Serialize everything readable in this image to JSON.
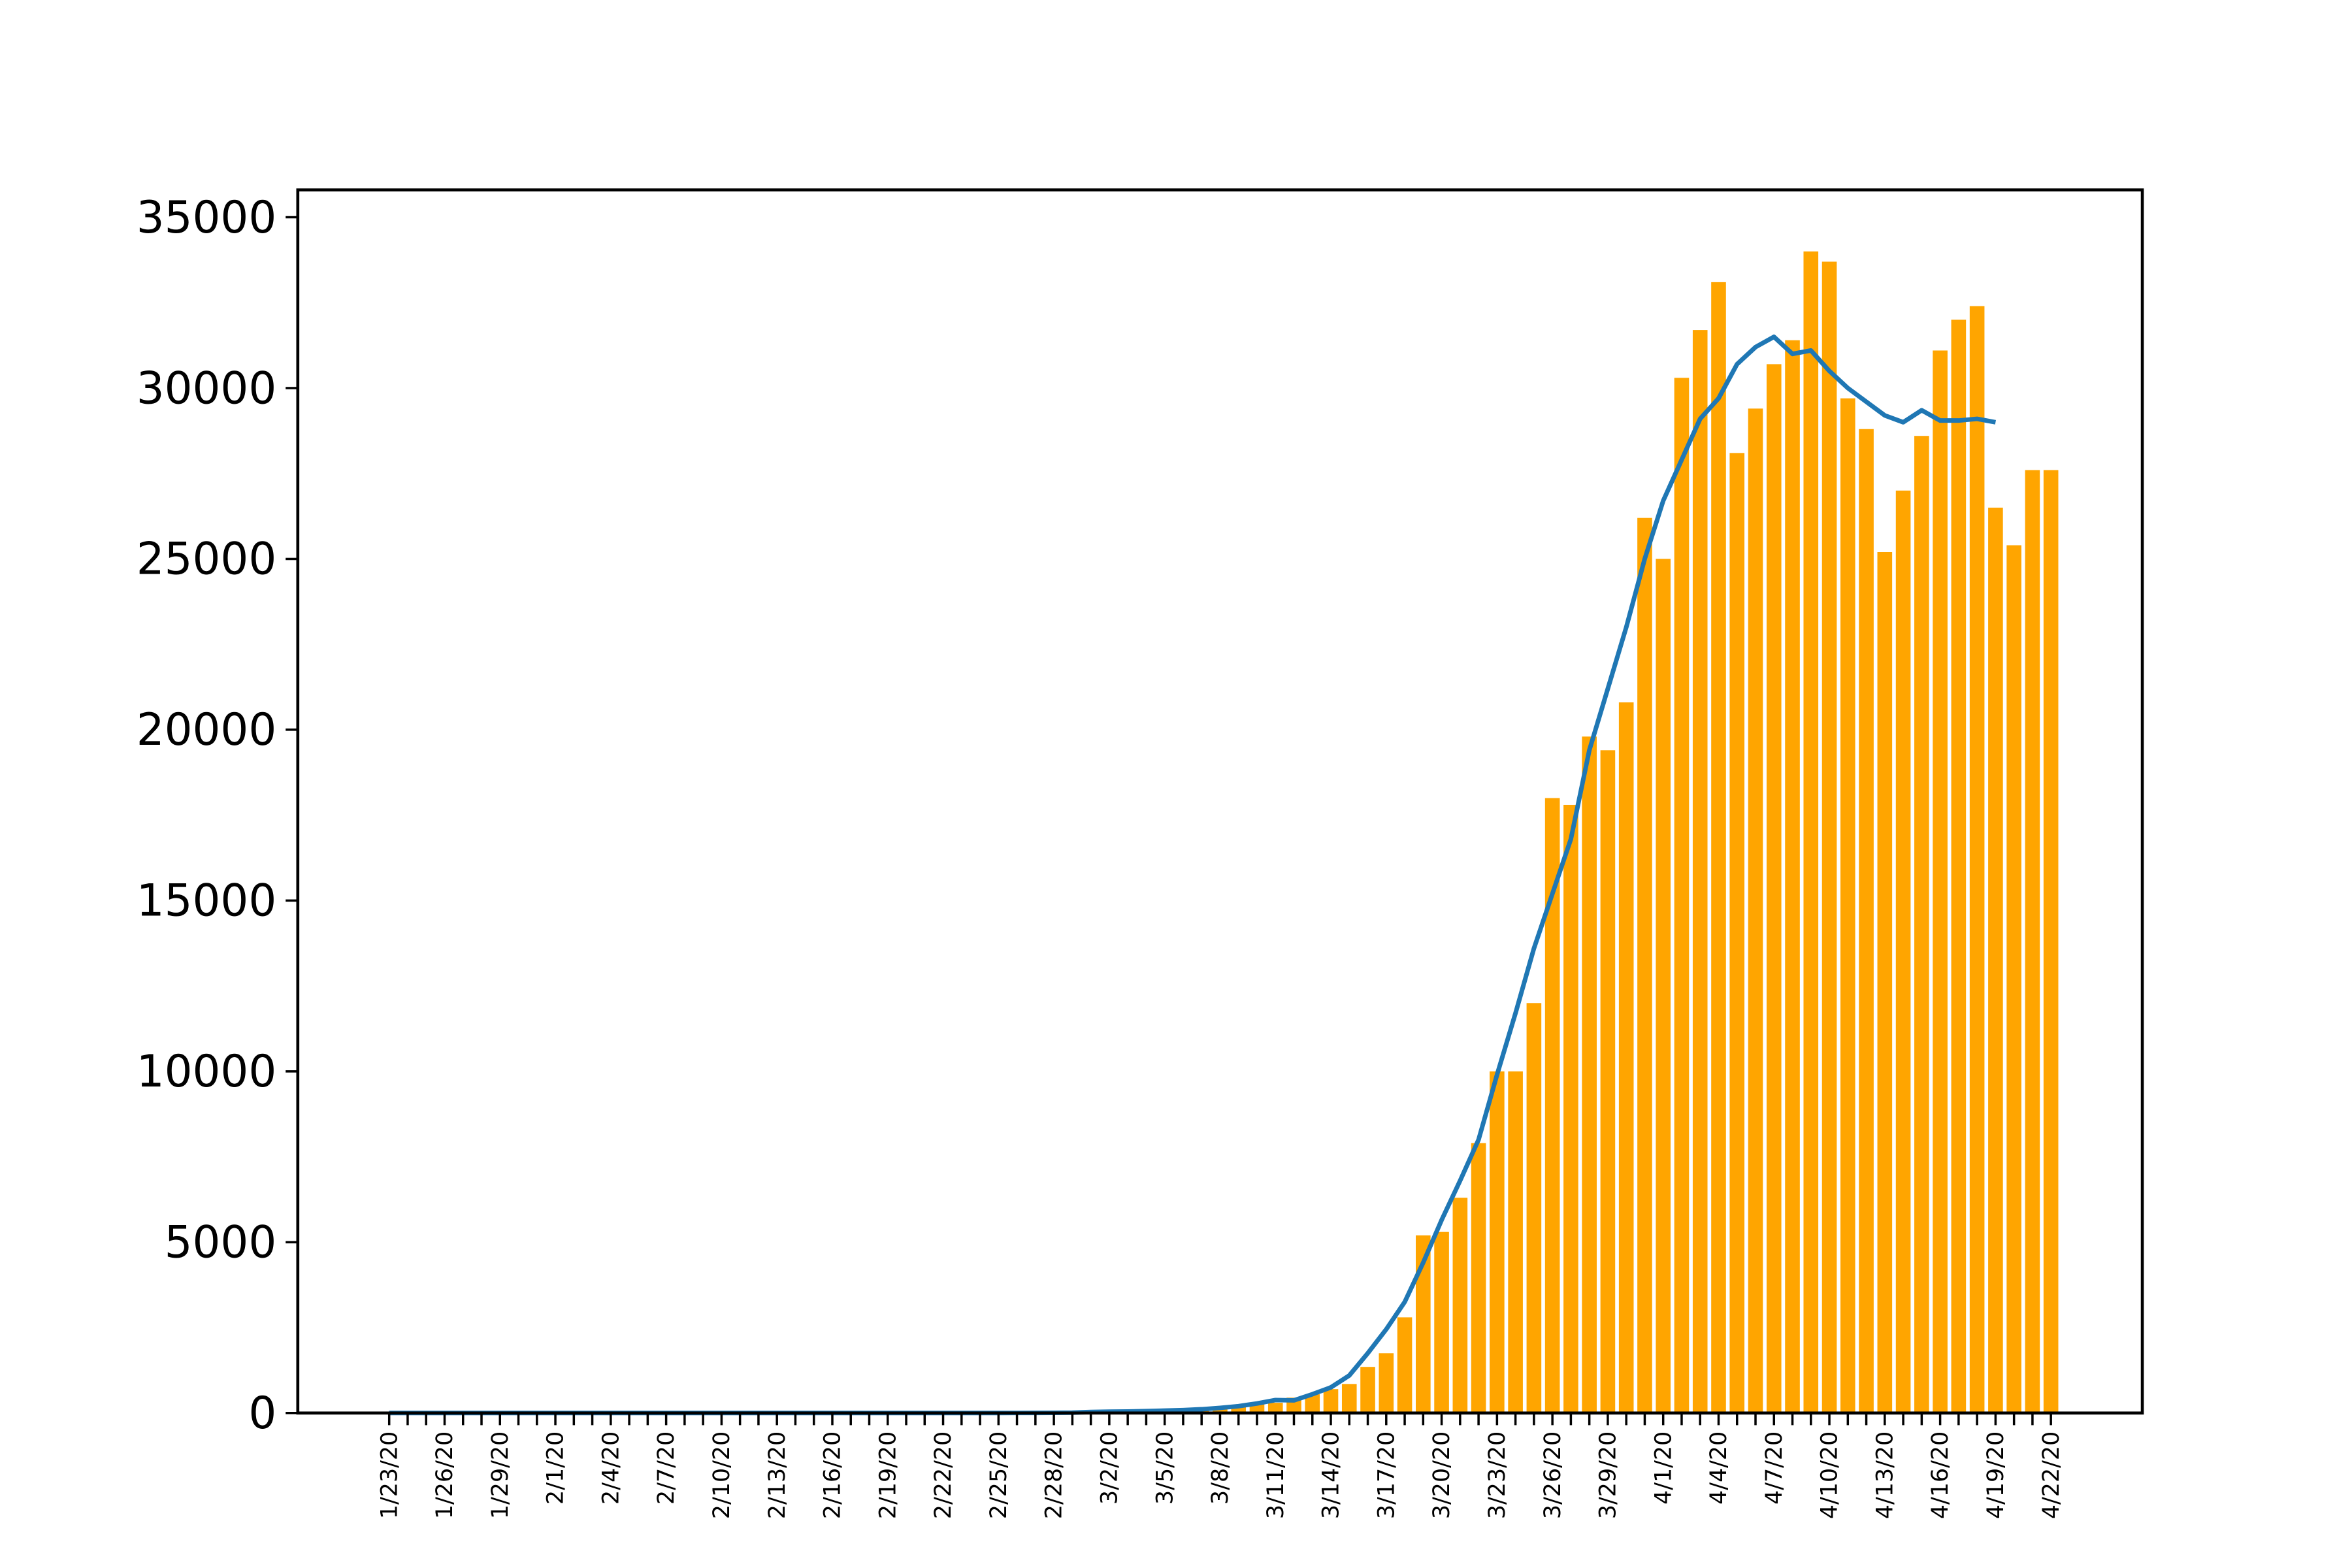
{
  "chart_data": {
    "type": "bar",
    "categories": [
      "1/23/20",
      null,
      null,
      "1/26/20",
      null,
      null,
      "1/29/20",
      null,
      null,
      "2/1/20",
      null,
      null,
      "2/4/20",
      null,
      null,
      "2/7/20",
      null,
      null,
      "2/10/20",
      null,
      null,
      "2/13/20",
      null,
      null,
      "2/16/20",
      null,
      null,
      "2/19/20",
      null,
      null,
      "2/22/20",
      null,
      null,
      "2/25/20",
      null,
      null,
      "2/28/20",
      null,
      null,
      "3/2/20",
      null,
      null,
      "3/5/20",
      null,
      null,
      "3/8/20",
      null,
      null,
      "3/11/20",
      null,
      null,
      "3/14/20",
      null,
      null,
      "3/17/20",
      null,
      null,
      "3/20/20",
      null,
      null,
      "3/23/20",
      null,
      null,
      "3/26/20",
      null,
      null,
      "3/29/20",
      null,
      null,
      "4/1/20",
      null,
      null,
      "4/4/20",
      null,
      null,
      "4/7/20",
      null,
      null,
      "4/10/20",
      null,
      null,
      "4/13/20",
      null,
      null,
      "4/16/20",
      null,
      null,
      "4/19/20",
      null,
      null,
      "4/22/20"
    ],
    "series": [
      {
        "type": "bar",
        "color": "#ffa500",
        "values": [
          1,
          0,
          1,
          0,
          2,
          0,
          0,
          0,
          1,
          1,
          0,
          2,
          0,
          0,
          0,
          0,
          0,
          0,
          0,
          1,
          0,
          1,
          0,
          0,
          0,
          0,
          0,
          0,
          0,
          0,
          0,
          0,
          0,
          0,
          0,
          0,
          0,
          1,
          20,
          25,
          30,
          40,
          60,
          70,
          100,
          120,
          200,
          270,
          300,
          450,
          550,
          700,
          850,
          1350,
          1750,
          2800,
          5200,
          5300,
          6300,
          7900,
          10000,
          10000,
          12000,
          18000,
          17800,
          19800,
          19400,
          20800,
          26200,
          25000,
          30300,
          31700,
          33100,
          28100,
          29400,
          30700,
          31400,
          34000,
          33700,
          29700,
          28800,
          25200,
          27000,
          28600,
          31100,
          32000,
          32400,
          26500,
          25400,
          27600,
          27600
        ]
      },
      {
        "type": "line",
        "color": "#1f77b4",
        "values": [
          1,
          1,
          1,
          1,
          1,
          1,
          1,
          1,
          1,
          1,
          1,
          1,
          1,
          1,
          1,
          1,
          1,
          1,
          1,
          1,
          1,
          1,
          1,
          1,
          1,
          1,
          1,
          1,
          1,
          1,
          1,
          1,
          1,
          1,
          2,
          3,
          5,
          10,
          30,
          40,
          45,
          55,
          70,
          85,
          110,
          150,
          200,
          280,
          380,
          370,
          550,
          750,
          1100,
          1750,
          2450,
          3250,
          4400,
          5650,
          6800,
          8000,
          9900,
          11700,
          13600,
          15200,
          16800,
          19400,
          21200,
          23000,
          25000,
          26700,
          27900,
          29100,
          29700,
          30700,
          31200,
          31500,
          31000,
          31100,
          30500,
          30000,
          29600,
          29200,
          29000,
          29350,
          29050,
          29050,
          29100,
          29000,
          null,
          null,
          null
        ]
      }
    ],
    "ylim": [
      0,
      35800
    ],
    "yticks": [
      0,
      5000,
      10000,
      15000,
      20000,
      25000,
      30000,
      35000
    ]
  }
}
